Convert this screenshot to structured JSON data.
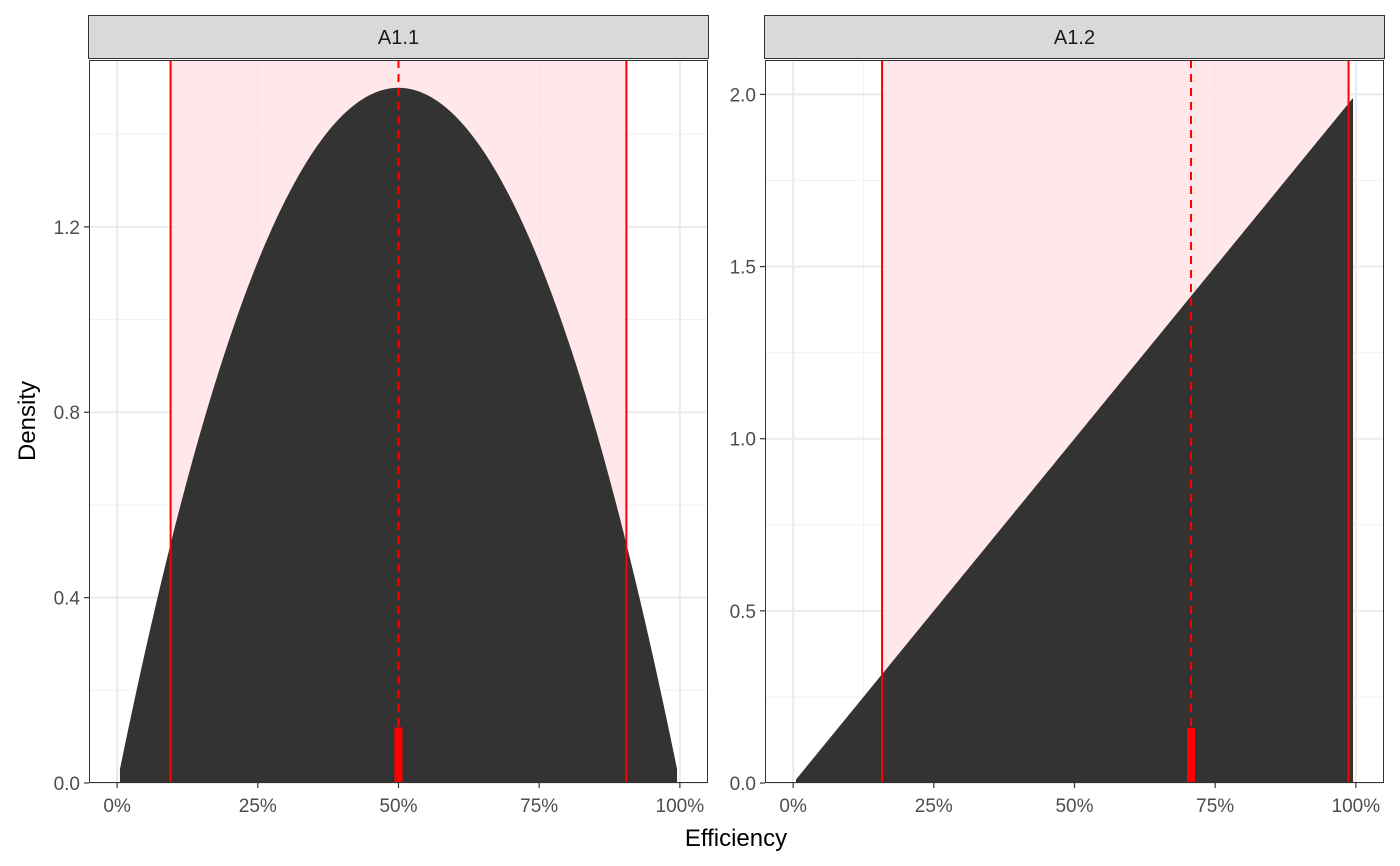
{
  "chart_data": {
    "type": "area",
    "xlabel": "Efficiency",
    "ylabel": "Density",
    "panels": [
      {
        "strip_label": "A1.1",
        "xlim": [
          -0.05,
          1.05
        ],
        "ylim": [
          0,
          1.56
        ],
        "x_ticks": [
          0,
          0.25,
          0.5,
          0.75,
          1
        ],
        "x_tick_labels": [
          "0%",
          "25%",
          "50%",
          "75%",
          "100%"
        ],
        "y_ticks": [
          0,
          0.4,
          0.8,
          1.2
        ],
        "y_tick_labels": [
          "0.0",
          "0.4",
          "0.8",
          "1.2"
        ],
        "density": {
          "distribution": "beta",
          "alpha": 2,
          "beta": 2,
          "x_range": [
            0.005,
            0.995
          ]
        },
        "interval": {
          "lower": 0.095,
          "upper": 0.905
        },
        "central": 0.5,
        "point_marker": {
          "x": 0.5,
          "y_top": 0.12
        }
      },
      {
        "strip_label": "A1.2",
        "xlim": [
          -0.05,
          1.05
        ],
        "ylim": [
          0,
          2.1
        ],
        "x_ticks": [
          0,
          0.25,
          0.5,
          0.75,
          1
        ],
        "x_tick_labels": [
          "0%",
          "25%",
          "50%",
          "75%",
          "100%"
        ],
        "y_ticks": [
          0,
          0.5,
          1,
          1.5,
          2
        ],
        "y_tick_labels": [
          "0.0",
          "0.5",
          "1.0",
          "1.5",
          "2.0"
        ],
        "density": {
          "distribution": "beta",
          "alpha": 2,
          "beta": 1,
          "x_range": [
            0.005,
            0.995
          ]
        },
        "interval": {
          "lower": 0.158,
          "upper": 0.987
        },
        "central": 0.707,
        "point_marker": {
          "x": 0.707,
          "y_top": 0.16
        }
      }
    ],
    "colors": {
      "density_fill": "#333333",
      "interval_fill": "#ffe3e6",
      "interval_line": "#ff0000",
      "grid_major": "#ebebeb",
      "grid_minor": "#f2f2f2",
      "strip_background": "#d9d9d9",
      "panel_border": "#333333"
    }
  }
}
